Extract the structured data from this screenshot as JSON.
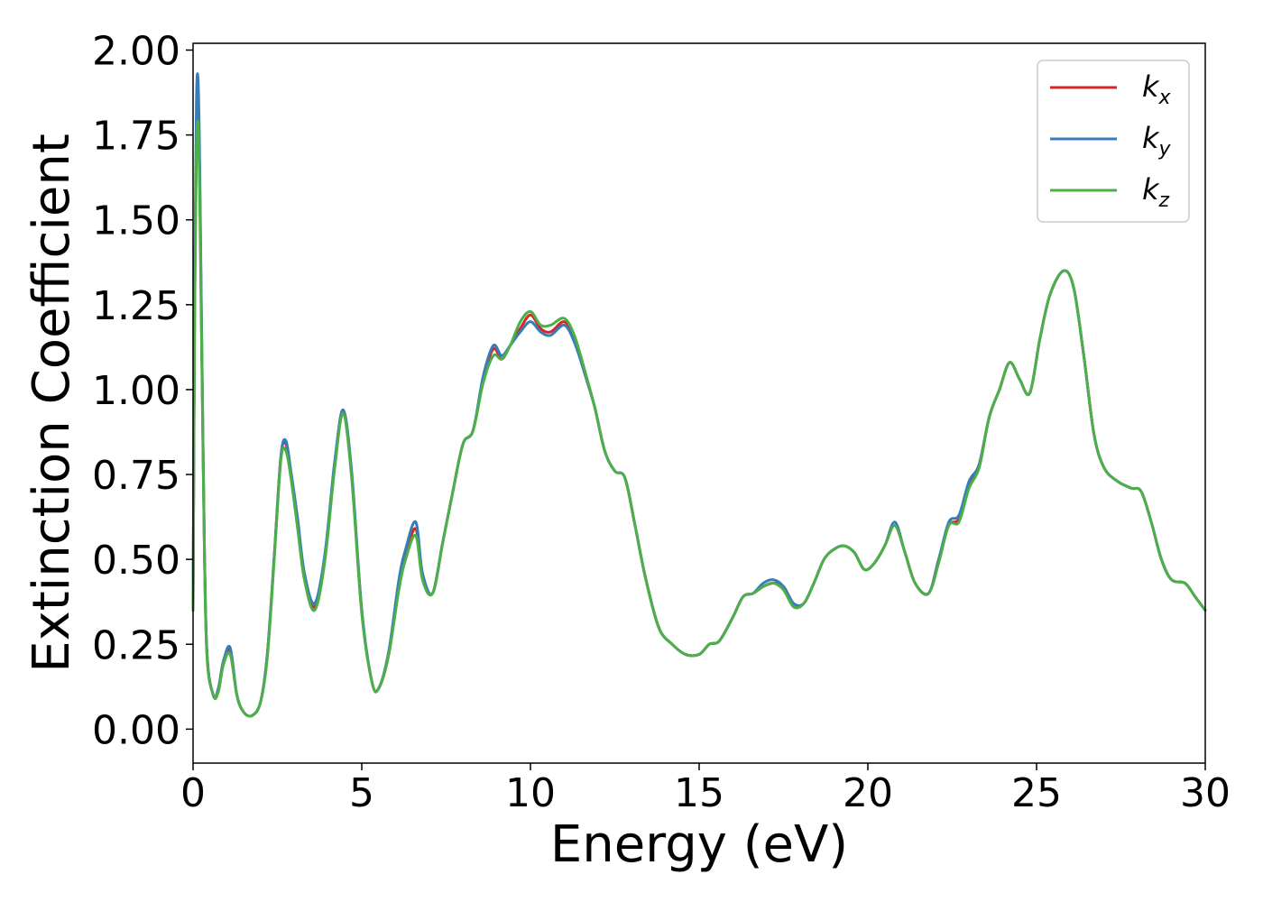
{
  "chart_data": {
    "type": "line",
    "xlabel": "Energy (eV)",
    "ylabel": "Extinction Coefficient",
    "xlim": [
      0,
      30
    ],
    "ylim": [
      -0.1,
      2.02
    ],
    "xticks": [
      0,
      5,
      10,
      15,
      20,
      25,
      30
    ],
    "xtick_labels": [
      "0",
      "5",
      "10",
      "15",
      "20",
      "25",
      "30"
    ],
    "yticks": [
      0,
      0.25,
      0.5,
      0.75,
      1.0,
      1.25,
      1.5,
      1.75,
      2.0
    ],
    "ytick_labels": [
      "0.00",
      "0.25",
      "0.50",
      "0.75",
      "1.00",
      "1.25",
      "1.50",
      "1.75",
      "2.00"
    ],
    "grid": false,
    "legend_position": "top-right",
    "x": [
      0.0,
      0.05,
      0.1,
      0.15,
      0.2,
      0.3,
      0.4,
      0.6,
      0.75,
      0.9,
      1.1,
      1.3,
      1.5,
      1.75,
      2.0,
      2.2,
      2.4,
      2.6,
      2.75,
      2.9,
      3.1,
      3.3,
      3.6,
      3.9,
      4.2,
      4.45,
      4.7,
      5.0,
      5.3,
      5.5,
      5.8,
      6.1,
      6.3,
      6.6,
      6.8,
      7.1,
      7.4,
      7.7,
      8.0,
      8.3,
      8.6,
      8.9,
      9.15,
      9.4,
      9.7,
      10.0,
      10.3,
      10.6,
      11.0,
      11.3,
      11.6,
      11.9,
      12.2,
      12.5,
      12.8,
      13.1,
      13.4,
      13.8,
      14.2,
      14.6,
      15.0,
      15.3,
      15.6,
      16.0,
      16.3,
      16.6,
      16.9,
      17.2,
      17.5,
      17.8,
      18.1,
      18.4,
      18.7,
      19.0,
      19.3,
      19.6,
      19.9,
      20.2,
      20.5,
      20.8,
      21.1,
      21.4,
      21.8,
      22.1,
      22.4,
      22.7,
      23.0,
      23.3,
      23.6,
      23.9,
      24.2,
      24.5,
      24.8,
      25.1,
      25.4,
      25.8,
      26.1,
      26.4,
      26.7,
      27.0,
      27.4,
      27.8,
      28.1,
      28.4,
      28.7,
      29.0,
      29.4,
      29.7,
      30.0
    ],
    "series": [
      {
        "name": "k_x",
        "label_base": "k",
        "label_sub": "x",
        "color": "#d62728",
        "values": [
          0.35,
          1.3,
          1.75,
          1.85,
          1.6,
          0.8,
          0.25,
          0.1,
          0.12,
          0.2,
          0.23,
          0.1,
          0.05,
          0.04,
          0.08,
          0.22,
          0.5,
          0.8,
          0.84,
          0.75,
          0.6,
          0.45,
          0.36,
          0.5,
          0.78,
          0.94,
          0.75,
          0.35,
          0.14,
          0.12,
          0.22,
          0.42,
          0.51,
          0.59,
          0.45,
          0.4,
          0.55,
          0.7,
          0.84,
          0.88,
          1.03,
          1.12,
          1.09,
          1.13,
          1.18,
          1.22,
          1.18,
          1.17,
          1.2,
          1.15,
          1.05,
          0.95,
          0.82,
          0.76,
          0.74,
          0.6,
          0.45,
          0.3,
          0.25,
          0.22,
          0.22,
          0.25,
          0.26,
          0.33,
          0.39,
          0.4,
          0.42,
          0.43,
          0.42,
          0.37,
          0.37,
          0.43,
          0.5,
          0.53,
          0.54,
          0.52,
          0.47,
          0.49,
          0.54,
          0.6,
          0.52,
          0.43,
          0.4,
          0.5,
          0.6,
          0.62,
          0.72,
          0.78,
          0.92,
          1.0,
          1.08,
          1.03,
          0.99,
          1.15,
          1.28,
          1.35,
          1.3,
          1.1,
          0.87,
          0.77,
          0.73,
          0.71,
          0.7,
          0.61,
          0.5,
          0.44,
          0.43,
          0.39,
          0.35
        ]
      },
      {
        "name": "k_y",
        "label_base": "k",
        "label_sub": "y",
        "color": "#377eb8",
        "values": [
          0.35,
          1.35,
          1.85,
          1.91,
          1.65,
          0.8,
          0.25,
          0.1,
          0.12,
          0.2,
          0.24,
          0.1,
          0.05,
          0.04,
          0.08,
          0.22,
          0.5,
          0.8,
          0.85,
          0.76,
          0.62,
          0.46,
          0.37,
          0.51,
          0.79,
          0.94,
          0.76,
          0.35,
          0.14,
          0.12,
          0.23,
          0.44,
          0.53,
          0.61,
          0.46,
          0.4,
          0.55,
          0.7,
          0.84,
          0.88,
          1.04,
          1.13,
          1.1,
          1.13,
          1.17,
          1.2,
          1.17,
          1.16,
          1.19,
          1.14,
          1.05,
          0.95,
          0.82,
          0.76,
          0.74,
          0.6,
          0.45,
          0.3,
          0.25,
          0.22,
          0.22,
          0.25,
          0.26,
          0.33,
          0.39,
          0.4,
          0.43,
          0.44,
          0.42,
          0.37,
          0.37,
          0.43,
          0.5,
          0.53,
          0.54,
          0.52,
          0.47,
          0.49,
          0.54,
          0.61,
          0.52,
          0.43,
          0.4,
          0.5,
          0.61,
          0.63,
          0.73,
          0.78,
          0.92,
          1.0,
          1.08,
          1.03,
          0.99,
          1.15,
          1.28,
          1.35,
          1.3,
          1.1,
          0.87,
          0.77,
          0.73,
          0.71,
          0.7,
          0.61,
          0.5,
          0.44,
          0.43,
          0.39,
          0.35
        ]
      },
      {
        "name": "k_z",
        "label_base": "k",
        "label_sub": "z",
        "color": "#4daf4a",
        "values": [
          0.35,
          1.25,
          1.7,
          1.78,
          1.55,
          0.78,
          0.24,
          0.1,
          0.11,
          0.19,
          0.22,
          0.1,
          0.05,
          0.04,
          0.08,
          0.21,
          0.49,
          0.79,
          0.82,
          0.74,
          0.59,
          0.44,
          0.35,
          0.49,
          0.77,
          0.93,
          0.74,
          0.34,
          0.14,
          0.12,
          0.22,
          0.41,
          0.5,
          0.57,
          0.44,
          0.4,
          0.55,
          0.7,
          0.84,
          0.88,
          1.02,
          1.1,
          1.09,
          1.13,
          1.2,
          1.23,
          1.19,
          1.19,
          1.21,
          1.16,
          1.06,
          0.95,
          0.82,
          0.76,
          0.74,
          0.6,
          0.45,
          0.3,
          0.25,
          0.22,
          0.22,
          0.25,
          0.26,
          0.33,
          0.39,
          0.4,
          0.42,
          0.43,
          0.41,
          0.36,
          0.37,
          0.43,
          0.5,
          0.53,
          0.54,
          0.52,
          0.47,
          0.49,
          0.54,
          0.6,
          0.52,
          0.43,
          0.4,
          0.49,
          0.6,
          0.61,
          0.71,
          0.77,
          0.92,
          1.0,
          1.08,
          1.03,
          0.99,
          1.15,
          1.28,
          1.35,
          1.3,
          1.1,
          0.87,
          0.77,
          0.73,
          0.71,
          0.7,
          0.61,
          0.5,
          0.44,
          0.43,
          0.39,
          0.35
        ]
      }
    ]
  }
}
